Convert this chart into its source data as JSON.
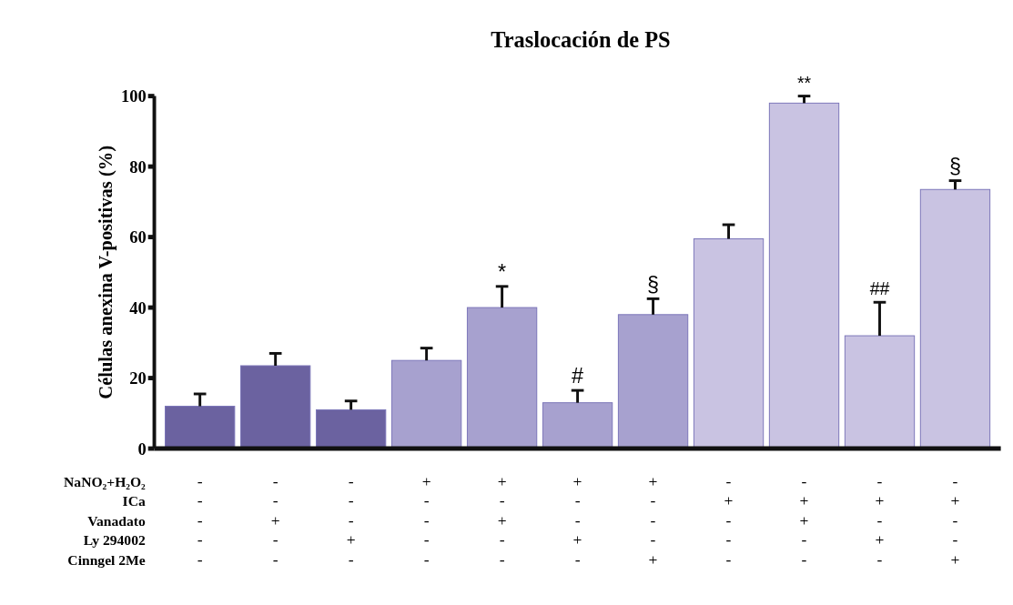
{
  "chart_data": {
    "type": "bar",
    "title": "Traslocación de PS",
    "ylabel": "Células anexina V-positivas (%)",
    "categories": [
      "-\n-\n-\n-\n-",
      "-\n-\n+\n-\n-",
      "-\n-\n-\n+\n-",
      "+\n-\n-\n-\n-",
      "+\n-\n+\n-\n-",
      "+\n-\n-\n+\n-",
      "+\n-\n-\n-\n+",
      "-\n+\n-\n-\n-",
      "-\n+\n+\n-\n-",
      "-\n+\n-\n+\n-",
      "-\n+\n-\n-\n+"
    ],
    "values": [
      12,
      23.5,
      11,
      25,
      40,
      13,
      38,
      59.5,
      98,
      32,
      73.5
    ],
    "errors": [
      3.5,
      3.5,
      2.5,
      3.5,
      6,
      3.5,
      4.5,
      4,
      2,
      9.5,
      2.5
    ],
    "colors": [
      "#6b62a0",
      "#6b62a0",
      "#6b62a0",
      "#a7a1cf",
      "#a7a1cf",
      "#a7a1cf",
      "#a7a1cf",
      "#c9c3e2",
      "#c9c3e2",
      "#c9c3e2",
      "#c9c3e2"
    ],
    "ylim": [
      0,
      100
    ],
    "yticks": [
      0,
      20,
      40,
      60,
      80,
      100
    ],
    "annotations": [
      "NaNO₂+H₂O₂",
      "ICa",
      "Vanadato",
      "Ly 294002",
      "Cinngel 2Me",
      {
        "text": "*",
        "x": "+\n-\n+\n-\n-",
        "y": 46
      },
      {
        "text": "#",
        "x": "+\n-\n-\n+\n-",
        "y": 16.5
      },
      {
        "text": "§",
        "x": "+\n-\n-\n-\n+",
        "y": 42.5
      },
      {
        "text": "**",
        "x": "-\n+\n+\n-\n-",
        "y": 100
      },
      {
        "text": "##",
        "x": "-\n+\n-\n+\n-",
        "y": 41.5
      },
      {
        "text": "§",
        "x": "-\n+\n-\n-\n+",
        "y": 76
      }
    ]
  }
}
